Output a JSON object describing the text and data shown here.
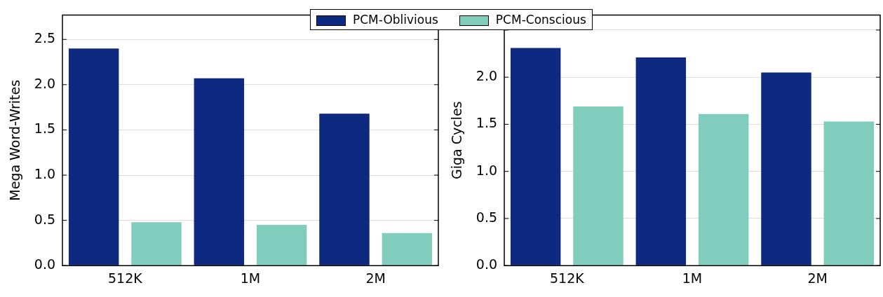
{
  "chart_data": [
    {
      "type": "bar",
      "ylabel": "Mega Word-Writes",
      "categories": [
        "512K",
        "1M",
        "2M"
      ],
      "series": [
        {
          "name": "PCM-Oblivious",
          "color": "#0e2a80",
          "values": [
            2.4,
            2.07,
            1.68
          ]
        },
        {
          "name": "PCM-Conscious",
          "color": "#80cdbd",
          "values": [
            0.48,
            0.45,
            0.36
          ]
        }
      ],
      "ylim": [
        0,
        2.77
      ],
      "yticks": [
        {
          "value": 0,
          "label": "0.0"
        },
        0.5,
        {
          "value": 1,
          "label": "1.0"
        },
        1.5,
        {
          "value": 2,
          "label": "2.0"
        },
        2.5
      ],
      "grid": "y",
      "legend": "top"
    },
    {
      "type": "bar",
      "ylabel": "Giga Cycles",
      "categories": [
        "512K",
        "1M",
        "2M"
      ],
      "series": [
        {
          "color": "#0e2a80",
          "values": [
            2.31,
            2.21,
            2.05
          ]
        },
        {
          "color": "#80cdbd",
          "values": [
            1.69,
            1.61,
            1.53
          ]
        }
      ],
      "ylim": [
        0,
        2.66
      ],
      "yticks": [
        {
          "value": 0,
          "label": "0.0"
        },
        0.5,
        {
          "value": 1,
          "label": "1.0"
        },
        1.5,
        {
          "value": 2,
          "label": "2.0"
        },
        {
          "value": 2.5,
          "label": null
        }
      ],
      "grid": "y"
    }
  ]
}
